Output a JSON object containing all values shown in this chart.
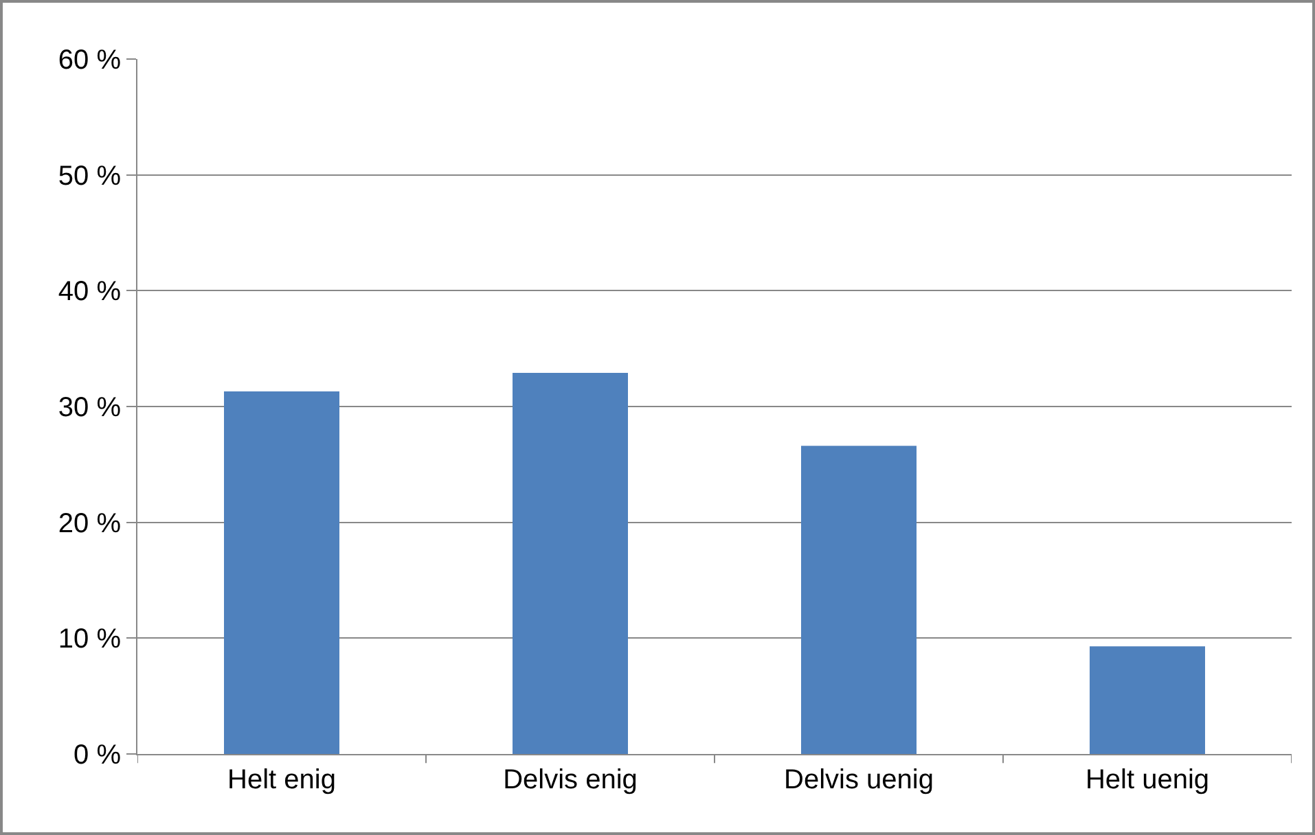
{
  "chart_data": {
    "type": "bar",
    "categories": [
      "Helt enig",
      "Delvis enig",
      "Delvis uenig",
      "Helt uenig"
    ],
    "values": [
      31.3,
      32.9,
      26.6,
      9.3
    ],
    "color": "#4f81bd",
    "ylim": [
      0,
      60
    ],
    "yticks": [
      {
        "value": 0,
        "label": "0 %"
      },
      {
        "value": 10,
        "label": "10 %"
      },
      {
        "value": 20,
        "label": "20 %"
      },
      {
        "value": 30,
        "label": "30 %"
      },
      {
        "value": 40,
        "label": "40 %"
      },
      {
        "value": 50,
        "label": "50 %"
      },
      {
        "value": 60,
        "label": "60 %"
      }
    ],
    "grid": "y",
    "legend": false
  }
}
